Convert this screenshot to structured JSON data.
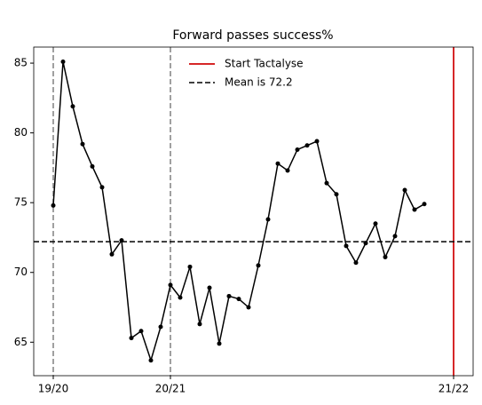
{
  "chart_data": {
    "type": "line",
    "title": "Forward passes success%",
    "x": [
      0,
      1,
      2,
      3,
      4,
      5,
      6,
      7,
      8,
      9,
      10,
      11,
      12,
      13,
      14,
      15,
      16,
      17,
      18,
      19,
      20,
      21,
      22,
      23,
      24,
      25,
      26,
      27,
      28,
      29,
      30,
      31,
      32,
      33,
      34,
      35,
      36,
      37,
      38
    ],
    "values": [
      74.8,
      85.1,
      81.9,
      79.2,
      77.6,
      76.1,
      71.3,
      72.3,
      65.3,
      65.8,
      63.7,
      66.1,
      69.1,
      68.2,
      70.4,
      66.3,
      68.9,
      64.9,
      68.3,
      68.1,
      67.5,
      70.5,
      73.8,
      77.8,
      77.3,
      78.8,
      79.1,
      79.4,
      76.4,
      75.6,
      71.9,
      70.7,
      72.1,
      73.5,
      71.1,
      72.6,
      75.9,
      74.5,
      74.9
    ],
    "color": "#000000",
    "xlim": [
      -2,
      43
    ],
    "ylim": [
      62.6,
      86.15
    ],
    "xticks": [
      {
        "value": 0,
        "label": "19/20"
      },
      {
        "value": 12,
        "label": "20/21"
      },
      {
        "value": 41,
        "label": "21/22"
      }
    ],
    "yticks": [
      65,
      70,
      75,
      80,
      85
    ],
    "season_lines": {
      "x": [
        0,
        12
      ],
      "color": "#808080"
    },
    "start": {
      "name": "Start Tactalyse",
      "x": 41,
      "color": "#d62728"
    },
    "mean": {
      "name": "Mean is 72.2",
      "value": 72.2,
      "color": "#000000"
    },
    "legend": "upper center"
  }
}
